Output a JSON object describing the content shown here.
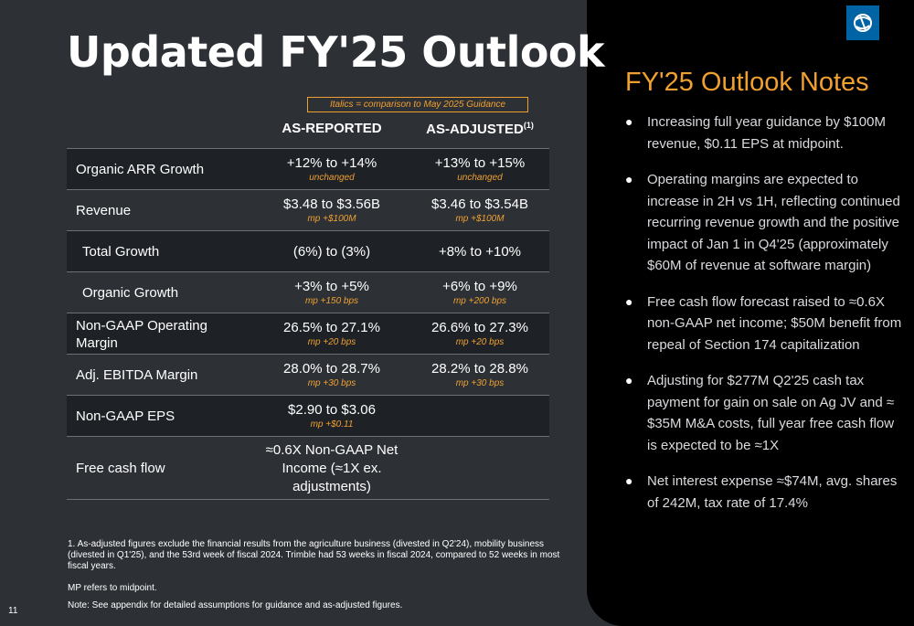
{
  "title": "Updated FY'25 Outlook",
  "guidance_note": "Italics = comparison to May 2025 Guidance",
  "columns": {
    "reported": "AS-REPORTED",
    "adjusted": "AS-ADJUSTED",
    "adjusted_sup": "(1)"
  },
  "rows": [
    {
      "label": "Organic ARR Growth",
      "reported": "+12% to +14%",
      "reported_note": "unchanged",
      "adjusted": "+13% to +15%",
      "adjusted_note": "unchanged"
    },
    {
      "label": "Revenue",
      "reported": "$3.48 to $3.56B",
      "reported_note": "mp +$100M",
      "adjusted": "$3.46 to $3.54B",
      "adjusted_note": "mp +$100M"
    },
    {
      "label": "Total Growth",
      "reported": "(6%) to (3%)",
      "reported_note": "",
      "adjusted": "+8% to +10%",
      "adjusted_note": ""
    },
    {
      "label": "Organic Growth",
      "reported": "+3% to +5%",
      "reported_note": "mp +150 bps",
      "adjusted": "+6% to +9%",
      "adjusted_note": "mp +200 bps"
    },
    {
      "label": "Non-GAAP Operating Margin",
      "reported": "26.5% to 27.1%",
      "reported_note": "mp +20 bps",
      "adjusted": "26.6% to 27.3%",
      "adjusted_note": "mp +20 bps"
    },
    {
      "label": "Adj. EBITDA Margin",
      "reported": "28.0% to 28.7%",
      "reported_note": "mp +30 bps",
      "adjusted": "28.2% to 28.8%",
      "adjusted_note": "mp +30 bps"
    },
    {
      "label": "Non-GAAP EPS",
      "reported": "$2.90 to $3.06",
      "reported_note": "mp +$0.11",
      "adjusted": "",
      "adjusted_note": ""
    },
    {
      "label": "Free cash flow",
      "reported": "≈0.6X Non-GAAP Net Income (≈1X ex. adjustments)",
      "reported_note": "",
      "adjusted": "",
      "adjusted_note": ""
    }
  ],
  "footnote": "1.  As-adjusted figures exclude the financial results from the agriculture business (divested in Q2'24), mobility business (divested in Q1'25), and the 53rd week of fiscal 2024. Trimble had 53 weeks in fiscal 2024, compared to 52 weeks in most fiscal years.",
  "mp_note": "MP refers to midpoint.",
  "note": "Note: See appendix for detailed assumptions for guidance and as-adjusted figures.",
  "page_number": "11",
  "notes_panel": {
    "title": "FY'25 Outlook Notes",
    "bullets": [
      "Increasing full year guidance by $100M revenue, $0.11 EPS at midpoint.",
      "Operating margins are expected to increase in 2H vs 1H, reflecting continued recurring revenue growth and the positive impact of Jan 1 in Q4'25 (approximately $60M of revenue at software margin)",
      "Free cash flow forecast raised to ≈0.6X non-GAAP net income; $50M benefit from repeal of Section 174 capitalization",
      "Adjusting for $277M Q2'25 cash tax payment for gain on sale on Ag JV and ≈ $35M M&A costs, full year free cash flow is expected to be ≈1X",
      "Net interest expense ≈$74M, avg. shares of 242M, tax rate of 17.4%"
    ]
  },
  "colors": {
    "background": "#2d3136",
    "panel": "#000000",
    "accent": "#f0a030",
    "logo": "#0063a3"
  },
  "icons": {
    "logo": "trimble-globe-icon",
    "bullet": "bullet-dot-icon"
  }
}
